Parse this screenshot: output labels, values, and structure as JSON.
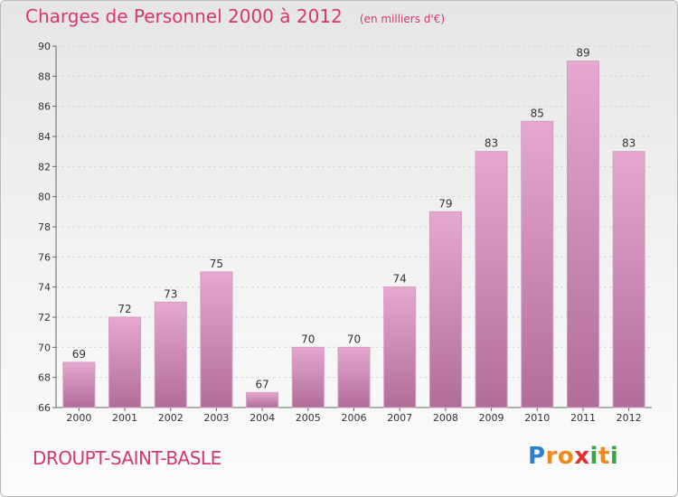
{
  "title": "Charges de Personnel 2000 à 2012",
  "unit": "(en milliers d'€)",
  "place": "DROUPT-SAINT-BASLE",
  "brand": {
    "letters": [
      "P",
      "r",
      "o",
      "x",
      "i",
      "t",
      "i"
    ],
    "colors": [
      "#2f7fd0",
      "#f08a1e",
      "#f08a1e",
      "#e0312f",
      "#3aa547",
      "#f08a1e",
      "#3aa547"
    ]
  },
  "colors": {
    "title": "#d5386e",
    "bar_top": "#e6a8cf",
    "bar_bottom": "#b06d98",
    "bar_stroke": "#d39bc0",
    "grid": "#d6d6d6"
  },
  "chart_data": {
    "type": "bar",
    "categories": [
      "2000",
      "2001",
      "2002",
      "2003",
      "2004",
      "2005",
      "2006",
      "2007",
      "2008",
      "2009",
      "2010",
      "2011",
      "2012"
    ],
    "values": [
      69,
      72,
      73,
      75,
      67,
      70,
      70,
      74,
      79,
      83,
      85,
      89,
      83
    ],
    "ylim": [
      66,
      90
    ],
    "yticks": [
      66,
      68,
      70,
      72,
      74,
      76,
      78,
      80,
      82,
      84,
      86,
      88,
      90
    ],
    "grid": true,
    "data_labels": true
  }
}
